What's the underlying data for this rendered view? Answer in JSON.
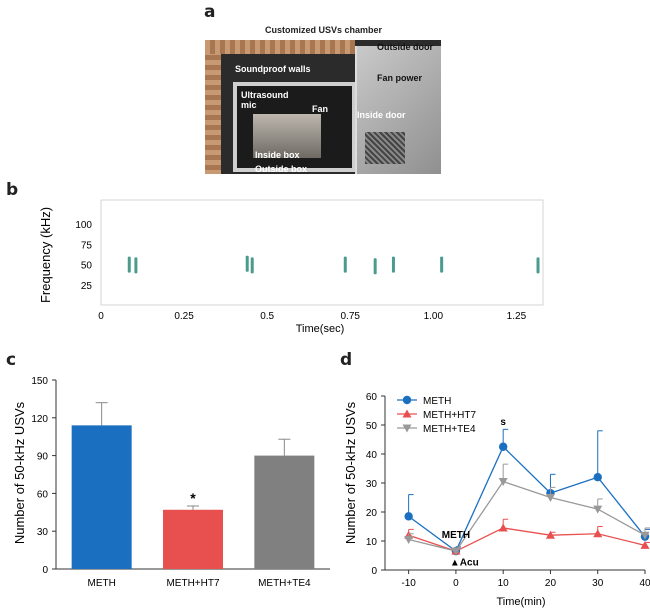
{
  "panel_labels": {
    "a": "a",
    "b": "b",
    "c": "c",
    "d": "d"
  },
  "photo": {
    "title": "Customized USVs chamber",
    "labels": {
      "outside_door": "Outside door",
      "soundproof_walls": "Soundproof walls",
      "fan_power": "Fan power",
      "ultrasound_mic": "Ultrasound mic",
      "fan": "Fan",
      "inside_door": "Inside door",
      "inside_box": "Inside box",
      "outside_box": "Outside box"
    }
  },
  "chart_data": [
    {
      "id": "b",
      "type": "scatter",
      "title": "",
      "xlabel": "Time(sec)",
      "ylabel": "Frequency (kHz)",
      "xlim": [
        0,
        1.33
      ],
      "ylim": [
        0,
        130
      ],
      "x_ticks": [
        "0",
        "0.25",
        "0.5",
        "0.75",
        "1.00",
        "1.25"
      ],
      "y_ticks": [
        "25",
        "50",
        "75",
        "100"
      ],
      "grid": false,
      "color": "#2a8a7a",
      "calls": [
        {
          "t": 0.085,
          "f": 50
        },
        {
          "t": 0.105,
          "f": 49
        },
        {
          "t": 0.44,
          "f": 51
        },
        {
          "t": 0.455,
          "f": 49
        },
        {
          "t": 0.735,
          "f": 50
        },
        {
          "t": 0.825,
          "f": 48
        },
        {
          "t": 0.88,
          "f": 50
        },
        {
          "t": 1.025,
          "f": 50
        },
        {
          "t": 1.315,
          "f": 49
        }
      ]
    },
    {
      "id": "c",
      "type": "bar",
      "title": "",
      "xlabel": "",
      "ylabel": "Number of 50-kHz USVs",
      "ylim": [
        0,
        150
      ],
      "y_ticks": [
        "0",
        "30",
        "60",
        "90",
        "120",
        "150"
      ],
      "categories": [
        "METH",
        "METH+HT7",
        "METH+TE4"
      ],
      "values": [
        114,
        47,
        90
      ],
      "errors": [
        18,
        3,
        13
      ],
      "colors": [
        "#1a6fc0",
        "#e8504f",
        "#808080"
      ],
      "annotations": [
        {
          "category": "METH+HT7",
          "text": "*"
        }
      ]
    },
    {
      "id": "d",
      "type": "line",
      "title": "",
      "xlabel": "Time(min)",
      "ylabel": "Number of 50-kHz USVs",
      "xlim": [
        -15,
        40
      ],
      "ylim": [
        0,
        60
      ],
      "x": [
        -10,
        0,
        10,
        20,
        30,
        40
      ],
      "x_ticks": [
        "-10",
        "0",
        "10",
        "20",
        "30",
        "40"
      ],
      "y_ticks": [
        "0",
        "10",
        "20",
        "30",
        "40",
        "50",
        "60"
      ],
      "legend_position": "top-left",
      "series": [
        {
          "name": "METH",
          "color": "#1a6fc0",
          "marker": "circle",
          "values": [
            18.5,
            6.5,
            42.5,
            26.5,
            32,
            11.5
          ],
          "errors": [
            7.5,
            1.5,
            6,
            6.5,
            16,
            2.5
          ]
        },
        {
          "name": "METH+HT7",
          "color": "#e8504f",
          "marker": "triangle-up",
          "values": [
            12,
            6.5,
            14.5,
            12,
            12.5,
            8.5
          ],
          "errors": [
            2,
            1,
            3,
            1,
            2.5,
            1
          ]
        },
        {
          "name": "METH+TE4",
          "color": "#999999",
          "marker": "triangle-down",
          "values": [
            10.5,
            6.5,
            30.5,
            25,
            21,
            12
          ],
          "errors": [
            2,
            1,
            6,
            3.5,
            3.5,
            2.5
          ]
        }
      ],
      "annotations": [
        {
          "x": 10,
          "text": "s"
        },
        {
          "x": 0,
          "text": "METH"
        },
        {
          "x": 0,
          "text": "Acu"
        }
      ]
    }
  ]
}
